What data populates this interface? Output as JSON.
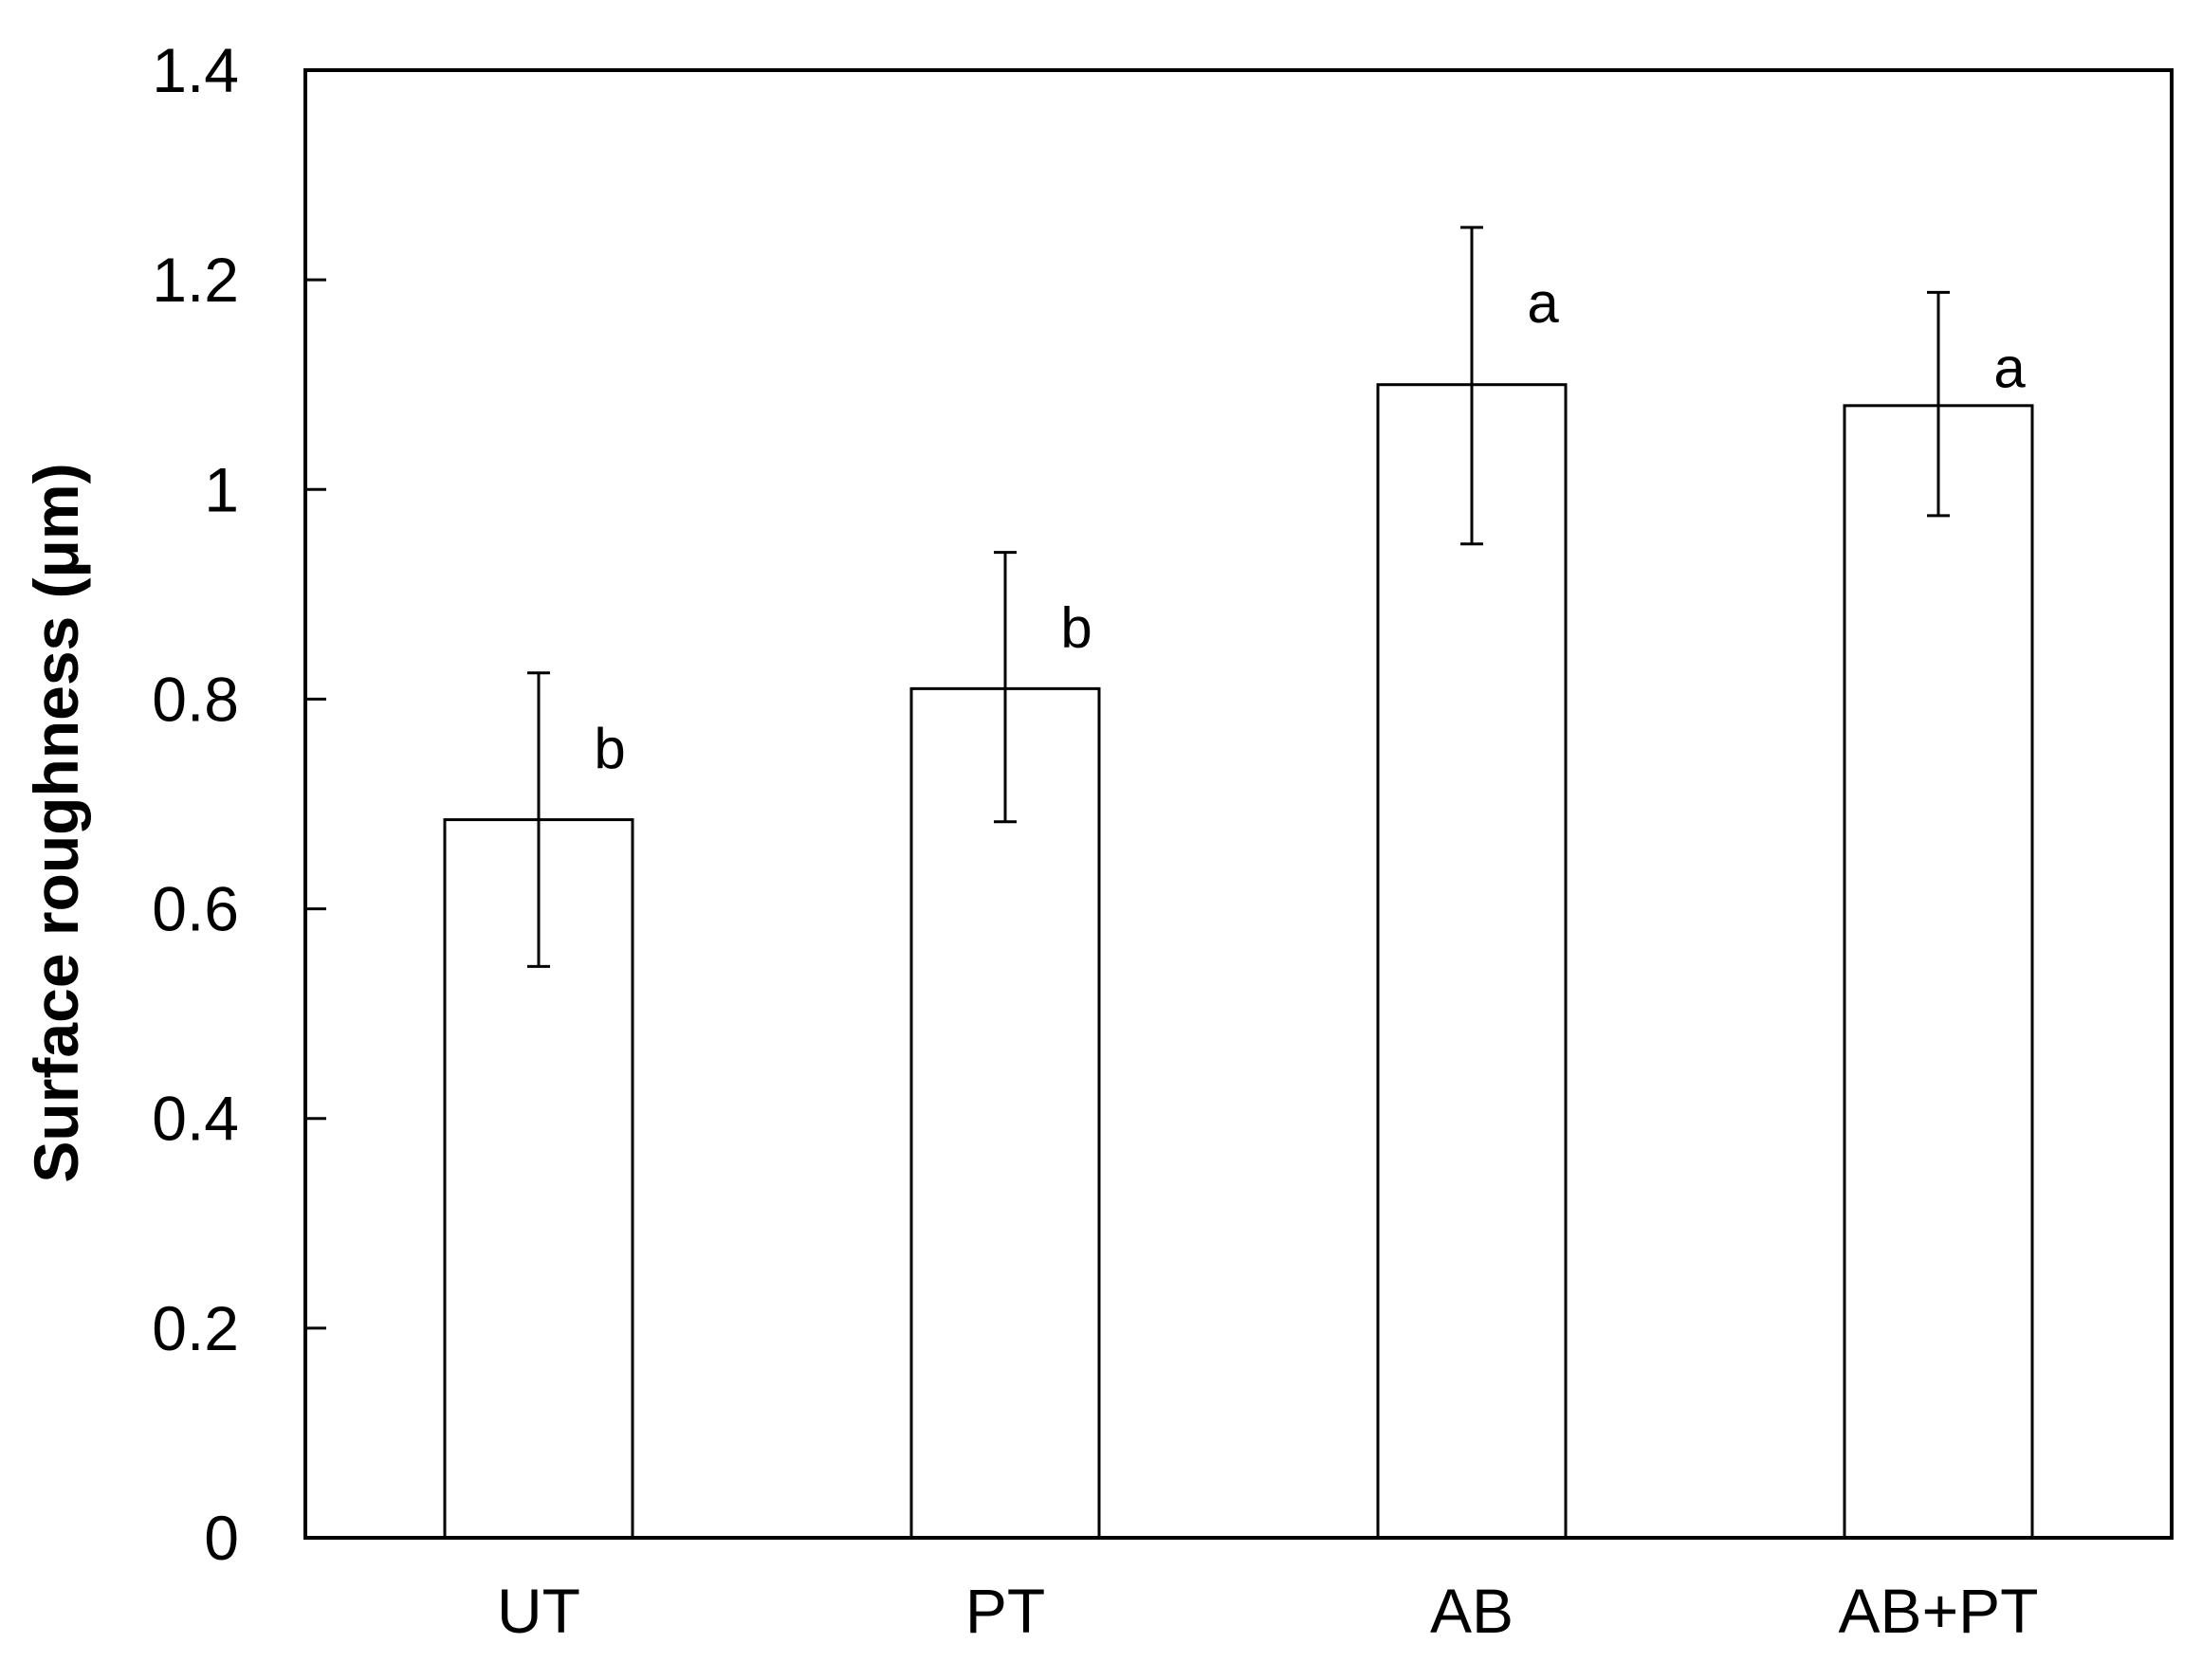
{
  "chart_data": {
    "type": "bar",
    "title": "",
    "xlabel": "",
    "ylabel": "Surface roughness (μm)",
    "ylim": [
      0,
      1.4
    ],
    "yticks": [
      0,
      0.2,
      0.4,
      0.6,
      0.8,
      1,
      1.2,
      1.4
    ],
    "ytick_labels": [
      "0",
      "0.2",
      "0.4",
      "0.6",
      "0.8",
      "1",
      "1.2",
      "1.4"
    ],
    "grid": false,
    "legend": "none",
    "categories": [
      "UT",
      "PT",
      "AB",
      "AB+PT"
    ],
    "values": [
      0.685,
      0.81,
      1.1,
      1.08
    ],
    "error_low": [
      0.545,
      0.683,
      0.948,
      0.975
    ],
    "error_high": [
      0.825,
      0.94,
      1.25,
      1.188
    ],
    "significance": [
      "b",
      "b",
      "a",
      "a"
    ],
    "bar_fill": "#ffffff",
    "bar_stroke": "#000000"
  }
}
